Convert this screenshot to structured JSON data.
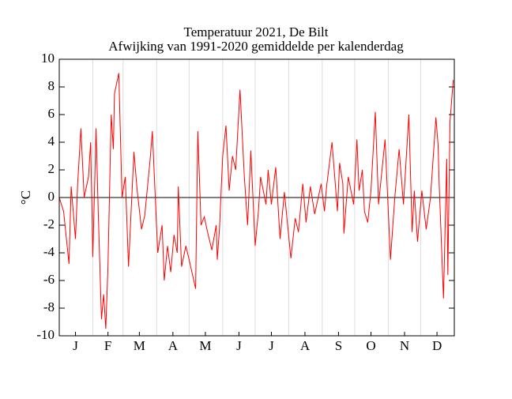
{
  "chart_data": {
    "type": "line",
    "title": "Temperatuur 2021, De Bilt",
    "subtitle": "Afwijking van 1991-2020 gemiddelde per kalenderdag",
    "ylabel": "°C",
    "x": [
      1,
      5,
      10,
      12,
      16,
      18,
      21,
      24,
      28,
      30,
      32,
      35,
      37,
      40,
      42,
      44,
      46,
      49,
      51,
      52,
      56,
      59,
      62,
      65,
      68,
      70,
      73,
      77,
      80,
      85,
      87,
      92,
      96,
      98,
      101,
      104,
      107,
      110,
      111,
      114,
      118,
      121,
      127,
      129,
      132,
      135,
      138,
      142,
      146,
      147,
      149,
      152,
      155,
      158,
      161,
      164,
      168,
      172,
      175,
      178,
      182,
      185,
      187,
      192,
      194,
      197,
      201,
      205,
      209,
      215,
      219,
      222,
      226,
      229,
      233,
      237,
      243,
      246,
      248,
      253,
      258,
      260,
      263,
      264,
      268,
      273,
      276,
      278,
      281,
      283,
      286,
      289,
      293,
      296,
      302,
      307,
      311,
      315,
      319,
      324,
      327,
      329,
      332,
      336,
      340,
      344,
      349,
      351,
      352,
      356,
      359,
      360,
      362,
      365
    ],
    "series": [
      {
        "name": "Temperatuur",
        "color": "#ff0000",
        "values": [
          0,
          -1,
          -4.8,
          0.8,
          -3,
          1,
          5,
          0,
          1.5,
          4,
          -4.3,
          5,
          -1,
          -8.8,
          -7,
          -9.5,
          -5,
          6,
          3.5,
          7.5,
          9,
          0,
          1.5,
          -5,
          0,
          3.3,
          0.5,
          -2.3,
          -1.3,
          2.8,
          4.8,
          -4,
          -2,
          -6,
          -3.5,
          -5.4,
          -2.7,
          -4,
          0.8,
          -5,
          -3.5,
          -4.5,
          -6.6,
          4.8,
          -2,
          -1.4,
          -2.5,
          -3.8,
          -2,
          -4.5,
          -2.3,
          3,
          5.2,
          0.5,
          3,
          2,
          7.8,
          1.5,
          -2,
          3.4,
          -3.5,
          -1,
          1.5,
          -0.5,
          2,
          -0.5,
          2.2,
          -3,
          0.4,
          -4.4,
          -1.5,
          -2.5,
          1,
          -1.8,
          0.8,
          -1.2,
          1,
          -1,
          0.8,
          4,
          -1,
          2.5,
          1,
          -2.6,
          1.5,
          -0.5,
          4.2,
          0.5,
          2,
          -1,
          -1.8,
          0.5,
          6.2,
          -0.5,
          4.2,
          -4.5,
          0,
          3.5,
          -0.5,
          6,
          -2.5,
          0.5,
          -3.2,
          0.5,
          -2.3,
          0,
          5.8,
          3.8,
          1,
          -7.3,
          2.8,
          -5.6,
          5.5,
          8.5
        ]
      }
    ],
    "xlim": [
      1,
      366
    ],
    "xticks": [
      {
        "value": 16,
        "label": "J"
      },
      {
        "value": 46,
        "label": "F"
      },
      {
        "value": 75,
        "label": "M"
      },
      {
        "value": 106,
        "label": "A"
      },
      {
        "value": 136,
        "label": "M"
      },
      {
        "value": 167,
        "label": "J"
      },
      {
        "value": 197,
        "label": "J"
      },
      {
        "value": 228,
        "label": "A"
      },
      {
        "value": 259,
        "label": "S"
      },
      {
        "value": 289,
        "label": "O"
      },
      {
        "value": 320,
        "label": "N"
      },
      {
        "value": 350,
        "label": "D"
      }
    ],
    "xgrid": [
      32,
      60,
      91,
      121,
      152,
      182,
      213,
      244,
      274,
      305,
      335
    ],
    "ylim": [
      -10,
      10
    ],
    "yticks": [
      -10,
      -8,
      -6,
      -4,
      -2,
      0,
      2,
      4,
      6,
      8,
      10
    ],
    "zero_line": true
  }
}
